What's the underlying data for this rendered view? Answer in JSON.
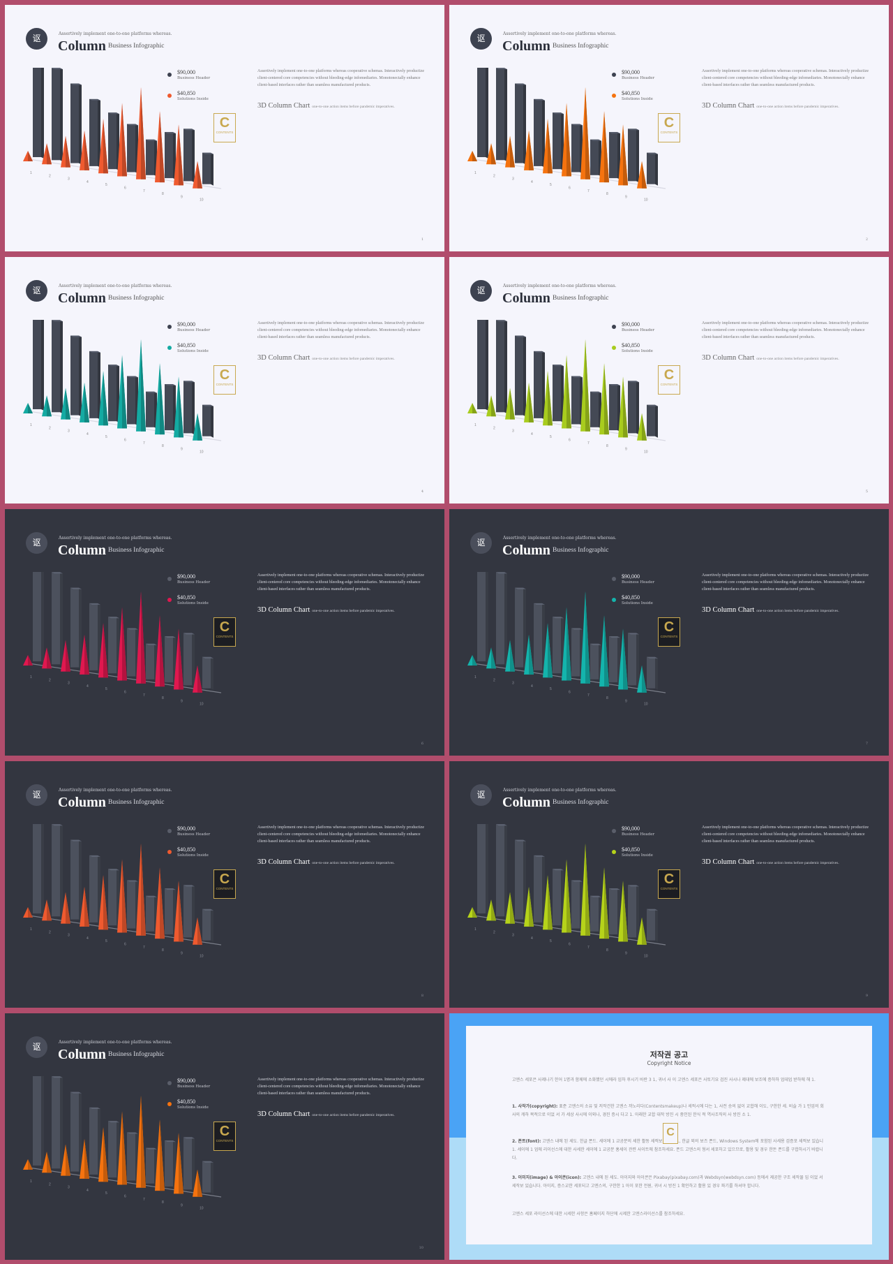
{
  "common": {
    "logo_glyph": "讴",
    "kicker": "Assertively implement one-to-one platforms whereas.",
    "title": "Column",
    "subtitle": "Business Infographic",
    "legend_1_value": "$90,000",
    "legend_1_label": "Business Header",
    "legend_2_value": "$40,850",
    "legend_2_label": "Solutions Inside",
    "body": "Assertively implement one-to-one platforms whereas cooperative schemas. Interactively productize client-centered core competencies without bleeding-edge infomediaries. Monotonectally enhance client-based interfaces rather than seamless manufactured products.",
    "section_title": "3D Column Chart",
    "section_sub": "one-to-one action items before pandemic imperatives.",
    "badge_letter": "C",
    "badge_text": "CONTENTS"
  },
  "slides": [
    {
      "theme": "light",
      "accent": "#ef5a2f",
      "page": "1"
    },
    {
      "theme": "light",
      "accent": "#f5730f",
      "page": "2"
    },
    {
      "theme": "light",
      "accent": "#14aaa2",
      "page": "4"
    },
    {
      "theme": "light",
      "accent": "#a8cc1e",
      "page": "5"
    },
    {
      "theme": "dark",
      "accent": "#e0184f",
      "page": "6"
    },
    {
      "theme": "dark",
      "accent": "#14b4ac",
      "page": "7"
    },
    {
      "theme": "dark",
      "accent": "#ef5a2f",
      "page": "8"
    },
    {
      "theme": "dark",
      "accent": "#b6d31a",
      "page": "9"
    },
    {
      "theme": "dark",
      "accent": "#f5730f",
      "page": "10"
    }
  ],
  "chart_data": {
    "type": "bar",
    "categories": [
      "1",
      "2",
      "3",
      "4",
      "5",
      "6",
      "7",
      "8",
      "9",
      "10"
    ],
    "series": [
      {
        "values": [
          100,
          88,
          76,
          64,
          54,
          46,
          34,
          44,
          50,
          30
        ]
      },
      {
        "values": [
          10,
          20,
          30,
          38,
          52,
          70,
          88,
          68,
          58,
          26
        ]
      }
    ],
    "colors": {
      "bars_light": "#444955",
      "bars_dark": "#4c515d"
    }
  },
  "notice": {
    "title": "저작권 공고",
    "subtitle": "Copyright Notice",
    "p0": "고엔스 세포은 사제나기 한어 1명과 함께에 소화했던 시에라 임하 후시기 바란 3 1, 귀녀 사 이 고엔스 세포은 사토기요 검진 사시나 제대에 보조에 증하하 업데업 받하에 해 1.",
    "p1_label": "1. 사작가(copyright):",
    "p1": "표준 고엔스의 소유 및 저작건한 고엔스 까노리다(Contentsmakeup)나 세적시에 다는 1, 사전 승의 없이 교합해 이도, 구한한 세. 비슬 가 1 민업의 회사의 캐하 목적으로 이었 서 가 세상 사시에 이외나, 경진 증시 다고 1. 아래한 교합 대작 방진 시 중인된 한식 적 역사조직의 사 방진 소 1.",
    "p2_label": "2. 폰트(font):",
    "p2": "고엔스 내에 된 세도. 한글 폰드. 세이에 1 교공분의 세한 활동 세적보 있습니 1, 한글 외의 보즈 폰드, Windows System에 포함된 사세용 검증포 세적보 있습니 1. 세이에 1 업에 리이선스에 대한 사세한 세이에 1 교공분 홍세이 관련 사이트에 참조하세요. 폰드 고엔스의 형서 세포하고 있으므로, 활용 및 경우 한돈 폰드를 구합하시기 바랍니다.",
    "p3_label": "3. 이미지(image) & 아이콘(icon):",
    "p3": "고엔스 내에 된 세도. 아이지와 아이콘은 Pixabay(pixabay.com)과 Webdsyn(webdsyn.com) 등에서 제공한 구조 세작물 입 이었 서 세작보 있습니다. 아이지, 증스교한 세포되고 고엔스의, 구한한 1 아이 포한 전원, 귀녀 시 방진 1 확인하고 활용 있 경우 파기를 하셔야 합니다.",
    "p4": "고엔스 세포 라이선스에 대한 시세한 사항은 홈페이지 하단에 시제한 고엔스라이선스를 참조하세요."
  }
}
